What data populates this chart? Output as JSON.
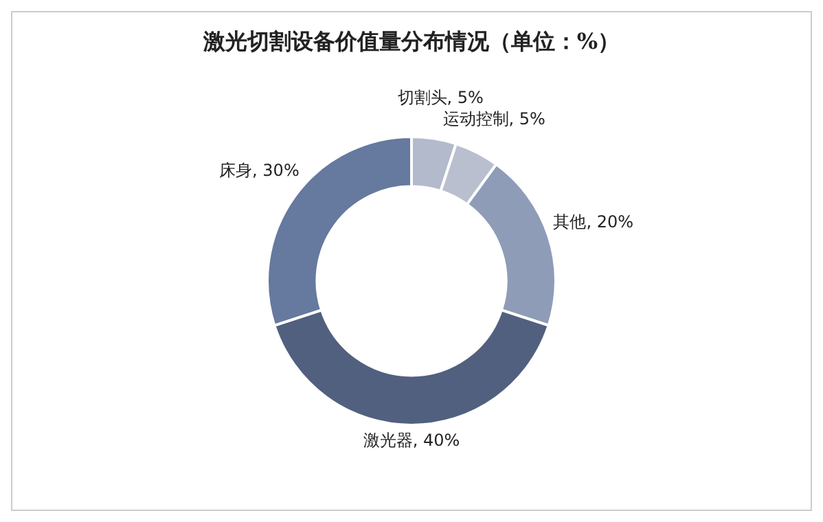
{
  "chart_data": {
    "type": "donut",
    "title": "激光切割设备价值量分布情况（单位：%）",
    "categories": [
      "切割头",
      "运动控制",
      "其他",
      "激光器",
      "床身"
    ],
    "values": [
      5,
      5,
      20,
      40,
      30
    ],
    "colors": [
      "#b3bacb",
      "#b9bfce",
      "#8f9cb8",
      "#51607f",
      "#66799e"
    ],
    "value_labels": [
      ", 5%",
      ", 5%",
      ", 20%",
      ", 40%",
      ", 30%"
    ],
    "legend": false
  }
}
